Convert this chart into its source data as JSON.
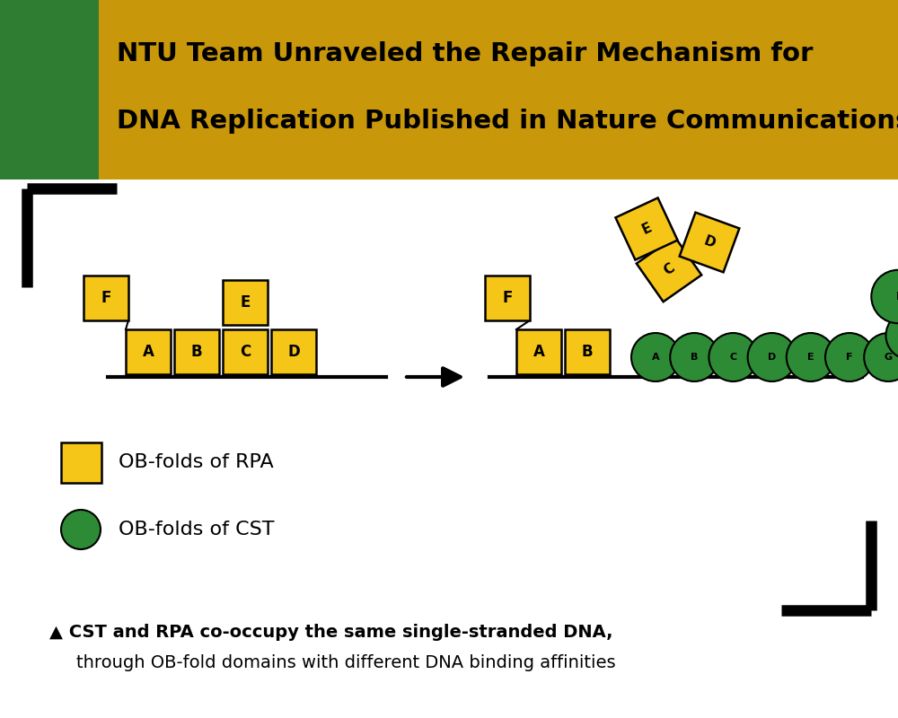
{
  "title_line1": "NTU Team Unraveled the Repair Mechanism for",
  "title_line2": "DNA Replication Published in Nature Communications",
  "header_bg": "#C9970A",
  "green_bar_color": "#2E7D32",
  "white_bg": "#FFFFFF",
  "rpa_color": "#F5C518",
  "cst_color": "#2E8B35",
  "black_color": "#000000",
  "legend_rpa_text": "OB-folds of RPA",
  "legend_cst_text": "OB-folds of CST",
  "caption_triangle": "▲",
  "caption_text": " CST and RPA co-occupy the same single-stranded DNA,",
  "caption_text2": "through OB-fold domains with different DNA binding affinities"
}
